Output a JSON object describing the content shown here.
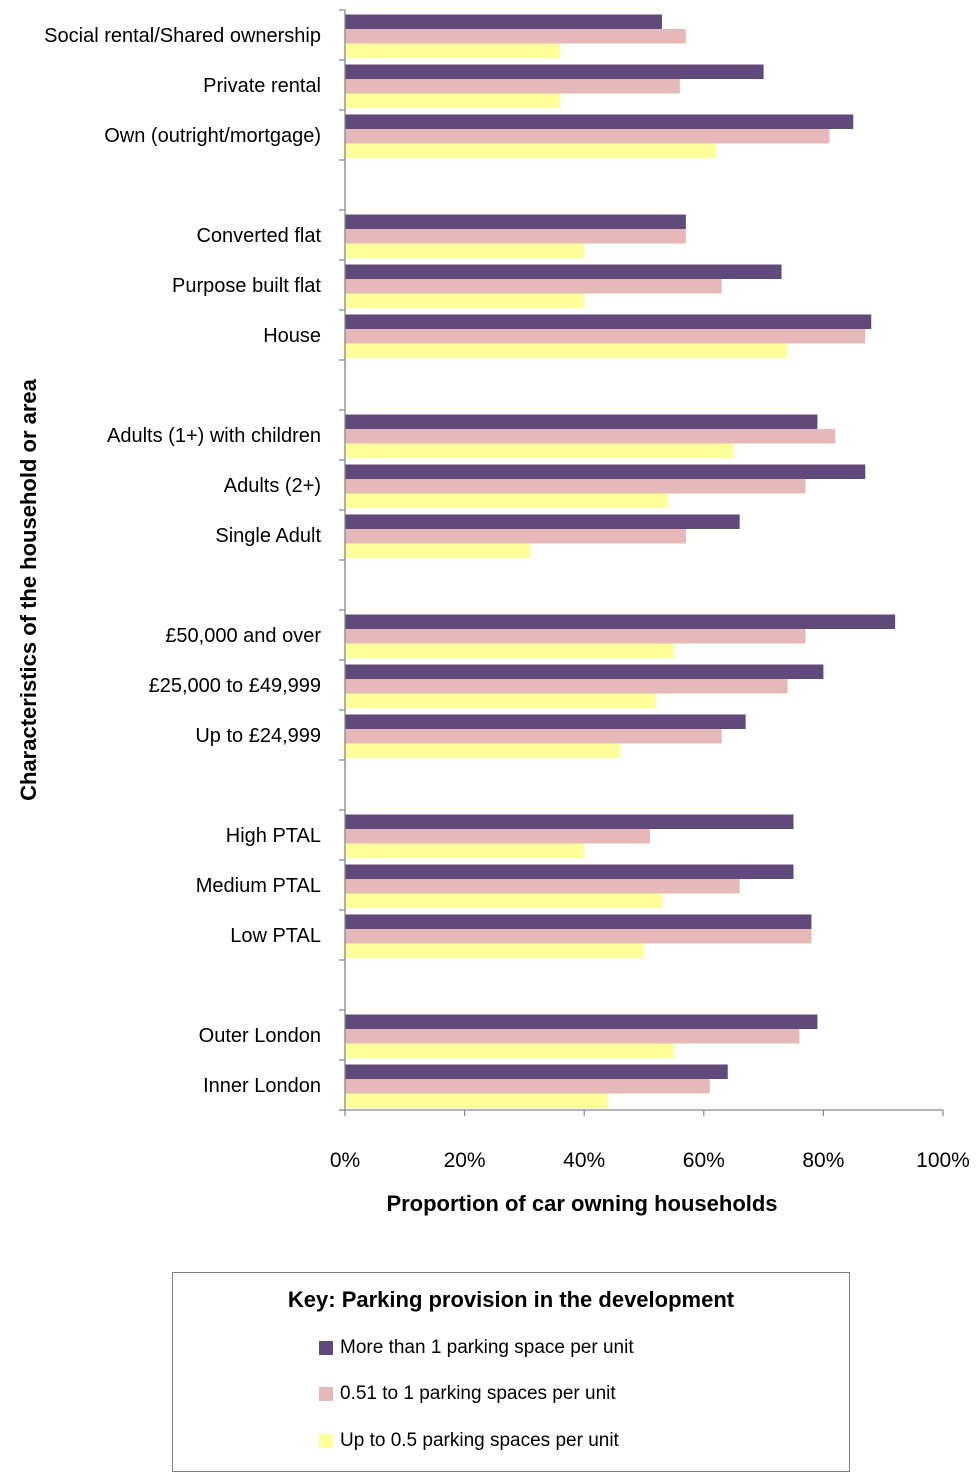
{
  "chart_data": {
    "type": "bar",
    "orientation": "horizontal",
    "groups": [
      [
        "Social rental/Shared ownership",
        "Private rental",
        "Own (outright/mortgage)"
      ],
      [
        "Converted flat",
        "Purpose built flat",
        "House"
      ],
      [
        "Adults (1+) with children",
        "Adults (2+)",
        "Single Adult"
      ],
      [
        "£50,000 and over",
        "£25,000 to £49,999",
        "Up to £24,999"
      ],
      [
        "High PTAL",
        "Medium PTAL",
        "Low PTAL"
      ],
      [
        "Outer London",
        "Inner London"
      ]
    ],
    "categories": [
      "Social rental/Shared ownership",
      "Private rental",
      "Own (outright/mortgage)",
      "Converted flat",
      "Purpose built flat",
      "House",
      "Adults (1+) with children",
      "Adults (2+)",
      "Single Adult",
      "£50,000 and over",
      "£25,000 to £49,999",
      "Up to £24,999",
      "High PTAL",
      "Medium PTAL",
      "Low PTAL",
      "Outer London",
      "Inner London"
    ],
    "series": [
      {
        "name": "More than 1 parking space per unit",
        "color": "#604A7B",
        "values": [
          53,
          70,
          85,
          57,
          73,
          88,
          79,
          87,
          66,
          92,
          80,
          67,
          75,
          75,
          78,
          79,
          64
        ]
      },
      {
        "name": "0.51 to 1 parking spaces per unit",
        "color": "#E6B9B8",
        "values": [
          57,
          56,
          81,
          57,
          63,
          87,
          82,
          77,
          57,
          77,
          74,
          63,
          51,
          66,
          78,
          76,
          61
        ]
      },
      {
        "name": "Up to 0.5 parking spaces per unit",
        "color": "#FFFF99",
        "values": [
          36,
          36,
          62,
          40,
          40,
          74,
          65,
          54,
          31,
          55,
          52,
          46,
          40,
          53,
          50,
          55,
          44
        ]
      }
    ],
    "xlim": [
      0,
      100
    ],
    "xticks": [
      "0%",
      "20%",
      "40%",
      "60%",
      "80%",
      "100%"
    ],
    "xlabel": "Proportion of car owning households",
    "ylabel": "Characteristics of the  household or area",
    "grid": false,
    "legend": {
      "title": "Key: Parking provision in the development",
      "position": "bottom"
    }
  }
}
